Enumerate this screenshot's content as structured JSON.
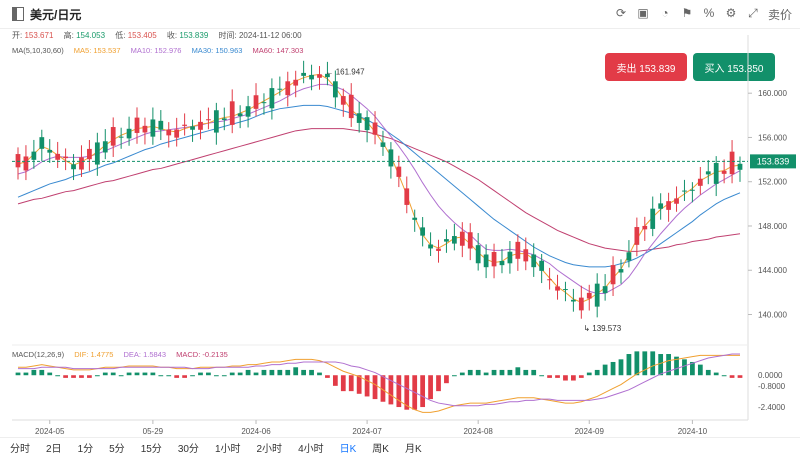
{
  "header": {
    "title": "美元/日元",
    "toolbar_icons": [
      "refresh-icon",
      "screenshot-icon",
      "chart-type-icon",
      "indicator-icon",
      "percent-icon",
      "settings-icon",
      "fullscreen-icon"
    ],
    "toolbar_last": "卖价"
  },
  "ohlc": {
    "open_label": "开:",
    "open": "153.671",
    "high_label": "高:",
    "high": "154.053",
    "low_label": "低:",
    "low": "153.405",
    "close_label": "收:",
    "close": "153.839",
    "time_label": "时间:",
    "time": "2024-11-12 06:00"
  },
  "ma_legend": {
    "label": "MA(5,10,30,60)",
    "ma5": "MA5: 153.537",
    "ma10": "MA10: 152.976",
    "ma30": "MA30: 150.963",
    "ma60": "MA60: 147.303"
  },
  "macd_legend": {
    "label": "MACD(12,26,9)",
    "dif": "DIF: 1.4775",
    "dea": "DEA: 1.5843",
    "macd": "MACD: -0.2135"
  },
  "buttons": {
    "sell": "卖出 153.839",
    "buy": "买入 153.850"
  },
  "timeframes": [
    "分时",
    "2日",
    "1分",
    "5分",
    "15分",
    "30分",
    "1小时",
    "2小时",
    "4小时",
    "日K",
    "周K",
    "月K"
  ],
  "active_timeframe": "日K",
  "colors": {
    "up": "#e23b47",
    "down": "#12906a",
    "ma5": "#f0a030",
    "ma10": "#b070d0",
    "ma30": "#3a8ad0",
    "ma60": "#c04070",
    "current": "#12906a"
  },
  "chart_data": {
    "type": "candlestick",
    "price_axis": {
      "ticks": [
        "160.000",
        "156.000",
        "152.000",
        "148.000",
        "144.000",
        "140.000"
      ],
      "range": [
        138.6,
        163.0
      ]
    },
    "macd_axis": {
      "ticks": [
        "0.0000",
        "-0.8000",
        "-2.4000"
      ],
      "range": [
        -3.0,
        1.3
      ]
    },
    "date_labels": [
      "2024-05",
      "05-29",
      "2024-06",
      "2024-07",
      "2024-08",
      "2024-09",
      "2024-10"
    ],
    "current_price": "153.839",
    "annotations": {
      "high": "161.947",
      "low": "139.573"
    },
    "series": [
      {
        "name": "MA5",
        "values": [
          153.6,
          153.8,
          154.5,
          155.2,
          154.9,
          154.4,
          153.9,
          153.5,
          153.8,
          154.2,
          154.7,
          155.3,
          155.8,
          156.2,
          156.5,
          156.8,
          156.9,
          157.0,
          156.8,
          156.6,
          156.5,
          156.8,
          157.0,
          157.2,
          157.3,
          157.6,
          157.8,
          157.9,
          158.2,
          158.5,
          158.9,
          159.3,
          159.7,
          160.1,
          160.6,
          161.1,
          161.4,
          161.6,
          161.7,
          161.3,
          160.5,
          159.5,
          158.5,
          157.9,
          157.4,
          156.5,
          155.5,
          154.3,
          152.6,
          150.8,
          148.8,
          147.2,
          146.3,
          146.0,
          146.4,
          146.9,
          147.0,
          146.4,
          145.6,
          145.0,
          144.7,
          144.8,
          145.3,
          145.5,
          145.5,
          145.0,
          144.1,
          143.3,
          142.5,
          142.0,
          141.4,
          141.1,
          141.4,
          141.9,
          142.4,
          143.3,
          144.1,
          145.4,
          146.8,
          148.0,
          148.8,
          149.5,
          150.0,
          150.4,
          150.9,
          151.4,
          152.1,
          152.5,
          152.9,
          153.0,
          153.4,
          153.5
        ]
      },
      {
        "name": "MA10",
        "values": [
          152.7,
          152.9,
          153.3,
          153.8,
          154.1,
          154.3,
          154.2,
          154.2,
          154.2,
          154.3,
          154.5,
          154.8,
          155.1,
          155.4,
          155.7,
          156.0,
          156.3,
          156.5,
          156.6,
          156.7,
          156.8,
          156.9,
          157.0,
          157.1,
          157.3,
          157.4,
          157.5,
          157.7,
          157.9,
          158.1,
          158.4,
          158.7,
          159.0,
          159.3,
          159.7,
          160.1,
          160.4,
          160.6,
          160.8,
          160.8,
          160.6,
          160.3,
          159.8,
          159.2,
          158.6,
          157.9,
          157.0,
          156.1,
          155.2,
          154.2,
          153.1,
          151.9,
          150.8,
          149.8,
          149.0,
          148.3,
          147.7,
          147.2,
          146.5,
          145.9,
          145.8,
          145.8,
          145.9,
          145.8,
          145.6,
          145.4,
          145.0,
          144.6,
          144.0,
          143.5,
          143.0,
          142.5,
          142.1,
          141.9,
          141.9,
          142.3,
          142.7,
          143.4,
          144.4,
          145.5,
          146.4,
          147.3,
          148.1,
          148.9,
          149.6,
          150.2,
          150.8,
          151.3,
          151.8,
          152.2,
          152.6,
          153.0
        ]
      },
      {
        "name": "MA30",
        "values": [
          150.6,
          150.9,
          151.2,
          151.5,
          151.8,
          152.0,
          152.2,
          152.5,
          152.7,
          152.9,
          153.2,
          153.5,
          153.7,
          154.0,
          154.3,
          154.6,
          154.9,
          155.1,
          155.4,
          155.6,
          155.8,
          156.0,
          156.2,
          156.4,
          156.6,
          156.8,
          157.0,
          157.2,
          157.4,
          157.6,
          157.9,
          158.2,
          158.4,
          158.6,
          158.7,
          158.8,
          158.9,
          158.9,
          158.9,
          158.8,
          158.6,
          158.4,
          158.2,
          157.9,
          157.6,
          157.2,
          156.8,
          156.3,
          155.8,
          155.2,
          154.6,
          154.0,
          153.4,
          152.8,
          152.2,
          151.6,
          151.0,
          150.4,
          149.8,
          149.2,
          148.6,
          148.1,
          147.6,
          147.1,
          146.6,
          146.1,
          145.7,
          145.3,
          145.0,
          144.7,
          144.5,
          144.4,
          144.3,
          144.3,
          144.3,
          144.4,
          144.6,
          144.8,
          145.1,
          145.5,
          145.9,
          146.4,
          146.9,
          147.4,
          147.9,
          148.4,
          149.0,
          149.5,
          150.0,
          150.4,
          150.7,
          151.0
        ]
      },
      {
        "name": "MA60",
        "values": [
          150.0,
          150.2,
          150.4,
          150.5,
          150.7,
          150.9,
          151.1,
          151.2,
          151.4,
          151.6,
          151.8,
          152.0,
          152.1,
          152.3,
          152.5,
          152.7,
          152.9,
          153.1,
          153.2,
          153.4,
          153.6,
          153.8,
          154.0,
          154.2,
          154.4,
          154.6,
          154.8,
          155.0,
          155.2,
          155.4,
          155.6,
          155.8,
          156.0,
          156.2,
          156.4,
          156.6,
          156.7,
          156.8,
          156.8,
          156.8,
          156.8,
          156.8,
          156.7,
          156.6,
          156.5,
          156.3,
          156.1,
          155.9,
          155.6,
          155.3,
          155.0,
          154.7,
          154.4,
          154.1,
          153.8,
          153.4,
          153.0,
          152.6,
          152.2,
          151.7,
          151.2,
          150.7,
          150.2,
          149.7,
          149.2,
          148.8,
          148.4,
          148.0,
          147.6,
          147.3,
          147.0,
          146.7,
          146.4,
          146.2,
          146.0,
          145.9,
          145.8,
          145.7,
          145.7,
          145.8,
          145.9,
          146.0,
          146.1,
          146.3,
          146.4,
          146.6,
          146.7,
          146.8,
          147.0,
          147.1,
          147.2,
          147.3
        ]
      },
      {
        "name": "DIF",
        "values": [
          0.6,
          0.6,
          0.7,
          0.8,
          0.7,
          0.6,
          0.5,
          0.4,
          0.4,
          0.4,
          0.5,
          0.6,
          0.6,
          0.6,
          0.7,
          0.7,
          0.7,
          0.7,
          0.6,
          0.6,
          0.5,
          0.5,
          0.5,
          0.6,
          0.6,
          0.6,
          0.6,
          0.7,
          0.7,
          0.8,
          0.8,
          0.9,
          1.0,
          1.0,
          1.1,
          1.2,
          1.2,
          1.2,
          1.1,
          0.9,
          0.6,
          0.3,
          0.1,
          -0.1,
          -0.4,
          -0.7,
          -1.1,
          -1.5,
          -1.9,
          -2.3,
          -2.6,
          -2.8,
          -2.8,
          -2.7,
          -2.5,
          -2.3,
          -2.2,
          -2.1,
          -2.1,
          -2.1,
          -2.0,
          -1.9,
          -1.8,
          -1.7,
          -1.7,
          -1.7,
          -1.8,
          -1.9,
          -2.0,
          -2.1,
          -2.1,
          -2.0,
          -1.8,
          -1.6,
          -1.3,
          -1.0,
          -0.7,
          -0.3,
          0.1,
          0.4,
          0.7,
          0.9,
          1.1,
          1.2,
          1.3,
          1.4,
          1.5,
          1.5,
          1.5,
          1.5,
          1.5,
          1.5
        ]
      },
      {
        "name": "DEA",
        "values": [
          0.5,
          0.5,
          0.5,
          0.6,
          0.6,
          0.6,
          0.6,
          0.5,
          0.5,
          0.5,
          0.5,
          0.5,
          0.5,
          0.6,
          0.6,
          0.6,
          0.6,
          0.6,
          0.6,
          0.6,
          0.6,
          0.6,
          0.5,
          0.5,
          0.5,
          0.6,
          0.6,
          0.6,
          0.6,
          0.6,
          0.7,
          0.7,
          0.8,
          0.8,
          0.9,
          0.9,
          1.0,
          1.0,
          1.0,
          1.0,
          1.0,
          0.9,
          0.7,
          0.6,
          0.4,
          0.2,
          -0.1,
          -0.4,
          -0.7,
          -1.0,
          -1.3,
          -1.6,
          -1.9,
          -2.1,
          -2.2,
          -2.3,
          -2.3,
          -2.3,
          -2.3,
          -2.2,
          -2.2,
          -2.1,
          -2.0,
          -2.0,
          -1.9,
          -1.9,
          -1.8,
          -1.8,
          -1.9,
          -1.9,
          -1.9,
          -1.9,
          -1.9,
          -1.8,
          -1.7,
          -1.5,
          -1.3,
          -1.1,
          -0.8,
          -0.5,
          -0.2,
          0.1,
          0.3,
          0.5,
          0.7,
          0.9,
          1.1,
          1.3,
          1.4,
          1.5,
          1.6,
          1.6
        ]
      }
    ]
  }
}
